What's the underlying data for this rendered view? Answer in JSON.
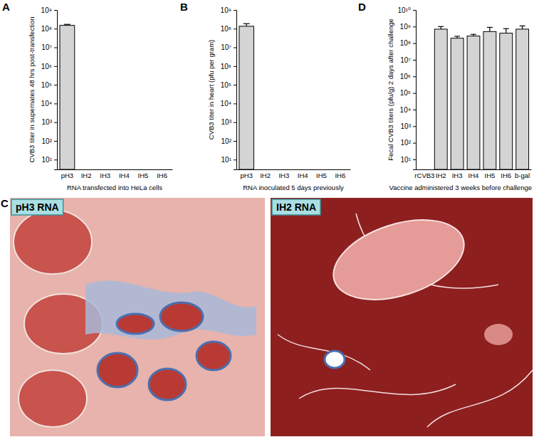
{
  "chart_data": [
    {
      "type": "bar",
      "title": "A",
      "categories": [
        "pH3",
        "IH2",
        "IH3",
        "IH4",
        "IH5",
        "IH6"
      ],
      "values": [
        150000000,
        null,
        null,
        null,
        null,
        null
      ],
      "errors": [
        20000000,
        null,
        null,
        null,
        null,
        null
      ],
      "ylabel": "CVB3 titer in supernates 48 hrs post-transfection",
      "xlabel": "RNA transfected into HeLa cells",
      "color": "#d4d4d4",
      "log": "y",
      "ylim": [
        3,
        1000000000
      ],
      "yticks": [
        {
          "value": 10,
          "label": "10¹"
        },
        {
          "value": 100,
          "label": "10²"
        },
        {
          "value": 1000,
          "label": "10³"
        },
        {
          "value": 10000,
          "label": "10⁴"
        },
        {
          "value": 100000,
          "label": "10⁵"
        },
        {
          "value": 1000000,
          "label": "10⁶"
        },
        {
          "value": 10000000,
          "label": "10⁷"
        },
        {
          "value": 100000000,
          "label": "10⁸"
        },
        {
          "value": 1000000000,
          "label": "10⁹"
        }
      ]
    },
    {
      "type": "bar",
      "title": "B",
      "categories": [
        "pH3",
        "IH2",
        "IH3",
        "IH4",
        "IH5",
        "IH6"
      ],
      "values": [
        135000000,
        null,
        null,
        null,
        null,
        null
      ],
      "errors": [
        50000000,
        null,
        null,
        null,
        null,
        null
      ],
      "ylabel": "CVB3 titer in heart (pfu per gram)",
      "xlabel": "RNA inoculated 5 days previously",
      "color": "#d4d4d4",
      "log": "y",
      "ylim": [
        3,
        1000000000
      ],
      "yticks": [
        {
          "value": 10,
          "label": "10¹"
        },
        {
          "value": 100,
          "label": "10²"
        },
        {
          "value": 1000,
          "label": "10³"
        },
        {
          "value": 10000,
          "label": "10⁴"
        },
        {
          "value": 100000,
          "label": "10⁵"
        },
        {
          "value": 1000000,
          "label": "10⁶"
        },
        {
          "value": 10000000,
          "label": "10⁷"
        },
        {
          "value": 100000000,
          "label": "10⁸"
        },
        {
          "value": 1000000000,
          "label": "10⁹"
        }
      ]
    },
    {
      "type": "bar",
      "title": "D",
      "categories": [
        "rCVB3",
        "IH2",
        "IH3",
        "IH4",
        "IH5",
        "IH6",
        "b-gal"
      ],
      "values": [
        null,
        700000000,
        200000000,
        270000000,
        500000000,
        400000000,
        700000000
      ],
      "errors": [
        null,
        300000000,
        60000000,
        70000000,
        400000000,
        350000000,
        400000000
      ],
      "ylabel": "Fecal CVB3 titers (pfu/g) 2 days after challenge",
      "xlabel": "Vaccine administered 3 weeks before challenge",
      "color": "#d4d4d4",
      "log": "y",
      "ylim": [
        2.5,
        10000000000
      ],
      "yticks": [
        {
          "value": 10,
          "label": "10¹"
        },
        {
          "value": 100,
          "label": "10²"
        },
        {
          "value": 1000,
          "label": "10³"
        },
        {
          "value": 10000,
          "label": "10⁴"
        },
        {
          "value": 100000,
          "label": "10⁵"
        },
        {
          "value": 1000000,
          "label": "10⁶"
        },
        {
          "value": 10000000,
          "label": "10⁷"
        },
        {
          "value": 100000000,
          "label": "10⁸"
        },
        {
          "value": 1000000000,
          "label": "10⁹"
        },
        {
          "value": 10000000000,
          "label": "10¹⁰"
        }
      ]
    }
  ],
  "image_panel": {
    "title": "C",
    "images": [
      {
        "label": "pH3 RNA"
      },
      {
        "label": "IH2 RNA"
      }
    ]
  }
}
